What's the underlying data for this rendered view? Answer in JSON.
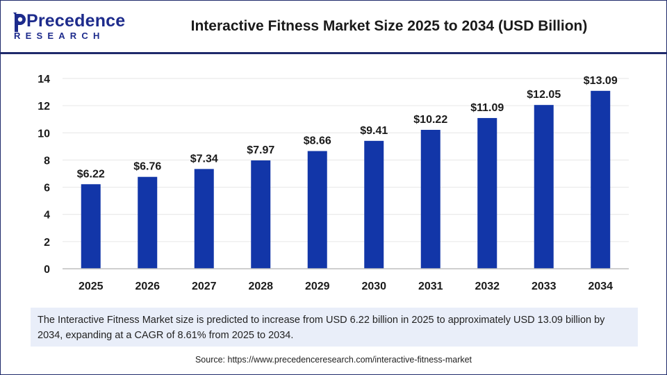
{
  "brand": {
    "name_line1": "Precedence",
    "name_line2": "RESEARCH",
    "color": "#1d2b8c"
  },
  "chart_data": {
    "type": "bar",
    "title": "Interactive Fitness Market Size 2025 to 2034 (USD Billion)",
    "categories": [
      "2025",
      "2026",
      "2027",
      "2028",
      "2029",
      "2030",
      "2031",
      "2032",
      "2033",
      "2034"
    ],
    "values": [
      6.22,
      6.76,
      7.34,
      7.97,
      8.66,
      9.41,
      10.22,
      11.09,
      12.05,
      13.09
    ],
    "data_labels": [
      "$6.22",
      "$6.76",
      "$7.34",
      "$7.97",
      "$8.66",
      "$9.41",
      "$10.22",
      "$11.09",
      "$12.05",
      "$13.09"
    ],
    "yticks": [
      0,
      2,
      4,
      6,
      8,
      10,
      12,
      14
    ],
    "ylim": [
      0,
      14
    ],
    "xlabel": "",
    "ylabel": "",
    "grid": true,
    "bar_color": "#1236a8"
  },
  "note": "The Interactive Fitness Market size is predicted to increase from USD 6.22 billion in 2025 to approximately USD 13.09 billion by 2034, expanding at a CAGR of 8.61% from 2025 to 2034.",
  "source": "Source: https://www.precedenceresearch.com/interactive-fitness-market"
}
